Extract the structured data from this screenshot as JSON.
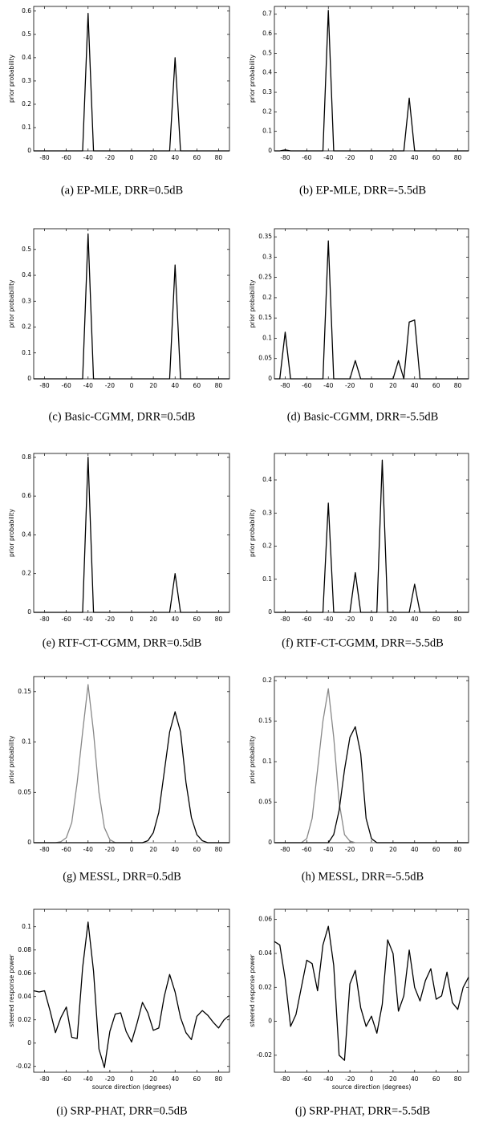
{
  "chart_data": [
    {
      "type": "line",
      "title": "(a) EP-MLE, DRR=0.5dB",
      "y_label": "prior probability",
      "x": [
        -90,
        -85,
        -80,
        -75,
        -70,
        -65,
        -60,
        -55,
        -50,
        -45,
        -40,
        -35,
        -30,
        -25,
        -20,
        -15,
        -10,
        -5,
        0,
        5,
        10,
        15,
        20,
        25,
        30,
        35,
        40,
        45,
        50,
        55,
        60,
        65,
        70,
        75,
        80,
        85,
        90
      ],
      "series": [
        {
          "color": "#000000",
          "values": [
            0,
            0,
            0,
            0,
            0,
            0,
            0,
            0,
            0,
            0,
            0.59,
            0,
            0,
            0,
            0,
            0,
            0,
            0,
            0,
            0,
            0,
            0,
            0,
            0,
            0,
            0,
            0.4,
            0,
            0,
            0,
            0,
            0,
            0,
            0,
            0,
            0,
            0
          ]
        }
      ],
      "xlim": [
        -90,
        90
      ],
      "xticks": [
        -80,
        -60,
        -40,
        -20,
        0,
        20,
        40,
        60,
        80
      ],
      "ylim": [
        0,
        0.62
      ],
      "yticks": [
        0,
        0.1,
        0.2,
        0.3,
        0.4,
        0.5,
        0.6
      ]
    },
    {
      "type": "line",
      "title": "(b) EP-MLE, DRR=-5.5dB",
      "y_label": "prior probability",
      "x": [
        -90,
        -85,
        -80,
        -75,
        -70,
        -65,
        -60,
        -55,
        -50,
        -45,
        -40,
        -35,
        -30,
        -25,
        -20,
        -15,
        -10,
        -5,
        0,
        5,
        10,
        15,
        20,
        25,
        30,
        35,
        40,
        45,
        50,
        55,
        60,
        65,
        70,
        75,
        80,
        85,
        90
      ],
      "series": [
        {
          "color": "#000000",
          "values": [
            0,
            0,
            0.005,
            0,
            0,
            0,
            0,
            0,
            0,
            0,
            0.72,
            0,
            0,
            0,
            0,
            0,
            0,
            0,
            0,
            0,
            0,
            0,
            0,
            0,
            0,
            0.27,
            0,
            0,
            0,
            0,
            0,
            0,
            0,
            0,
            0,
            0,
            0
          ]
        }
      ],
      "xlim": [
        -90,
        90
      ],
      "xticks": [
        -80,
        -60,
        -40,
        -20,
        0,
        20,
        40,
        60,
        80
      ],
      "ylim": [
        0,
        0.74
      ],
      "yticks": [
        0,
        0.1,
        0.2,
        0.3,
        0.4,
        0.5,
        0.6,
        0.7
      ]
    },
    {
      "type": "line",
      "title": "(c) Basic-CGMM, DRR=0.5dB",
      "y_label": "prior probability",
      "x": [
        -90,
        -85,
        -80,
        -75,
        -70,
        -65,
        -60,
        -55,
        -50,
        -45,
        -40,
        -35,
        -30,
        -25,
        -20,
        -15,
        -10,
        -5,
        0,
        5,
        10,
        15,
        20,
        25,
        30,
        35,
        40,
        45,
        50,
        55,
        60,
        65,
        70,
        75,
        80,
        85,
        90
      ],
      "series": [
        {
          "color": "#000000",
          "values": [
            0,
            0,
            0,
            0,
            0,
            0,
            0,
            0,
            0,
            0,
            0.56,
            0,
            0,
            0,
            0,
            0,
            0,
            0,
            0,
            0,
            0,
            0,
            0,
            0,
            0,
            0,
            0.44,
            0,
            0,
            0,
            0,
            0,
            0,
            0,
            0,
            0,
            0
          ]
        }
      ],
      "xlim": [
        -90,
        90
      ],
      "xticks": [
        -80,
        -60,
        -40,
        -20,
        0,
        20,
        40,
        60,
        80
      ],
      "ylim": [
        0,
        0.58
      ],
      "yticks": [
        0,
        0.1,
        0.2,
        0.3,
        0.4,
        0.5
      ]
    },
    {
      "type": "line",
      "title": "(d) Basic-CGMM, DRR=-5.5dB",
      "y_label": "prior probability",
      "x": [
        -90,
        -85,
        -80,
        -75,
        -70,
        -65,
        -60,
        -55,
        -50,
        -45,
        -40,
        -35,
        -30,
        -25,
        -20,
        -15,
        -10,
        -5,
        0,
        5,
        10,
        15,
        20,
        25,
        30,
        35,
        40,
        45,
        50,
        55,
        60,
        65,
        70,
        75,
        80,
        85,
        90
      ],
      "series": [
        {
          "color": "#000000",
          "values": [
            0,
            0,
            0.115,
            0,
            0,
            0,
            0,
            0,
            0,
            0,
            0.34,
            0,
            0,
            0,
            0,
            0.045,
            0,
            0,
            0,
            0,
            0,
            0,
            0,
            0.045,
            0,
            0.14,
            0.145,
            0,
            0,
            0,
            0,
            0,
            0,
            0,
            0,
            0,
            0
          ]
        }
      ],
      "xlim": [
        -90,
        90
      ],
      "xticks": [
        -80,
        -60,
        -40,
        -20,
        0,
        20,
        40,
        60,
        80
      ],
      "ylim": [
        0,
        0.37
      ],
      "yticks": [
        0,
        0.05,
        0.1,
        0.15,
        0.2,
        0.25,
        0.3,
        0.35
      ]
    },
    {
      "type": "line",
      "title": "(e) RTF-CT-CGMM, DRR=0.5dB",
      "y_label": "prior probability",
      "x": [
        -90,
        -85,
        -80,
        -75,
        -70,
        -65,
        -60,
        -55,
        -50,
        -45,
        -40,
        -35,
        -30,
        -25,
        -20,
        -15,
        -10,
        -5,
        0,
        5,
        10,
        15,
        20,
        25,
        30,
        35,
        40,
        45,
        50,
        55,
        60,
        65,
        70,
        75,
        80,
        85,
        90
      ],
      "series": [
        {
          "color": "#000000",
          "values": [
            0,
            0,
            0,
            0,
            0,
            0,
            0,
            0,
            0,
            0,
            0.8,
            0,
            0,
            0,
            0,
            0,
            0,
            0,
            0,
            0,
            0,
            0,
            0,
            0,
            0,
            0,
            0.2,
            0,
            0,
            0,
            0,
            0,
            0,
            0,
            0,
            0,
            0
          ]
        }
      ],
      "xlim": [
        -90,
        90
      ],
      "xticks": [
        -80,
        -60,
        -40,
        -20,
        0,
        20,
        40,
        60,
        80
      ],
      "ylim": [
        0,
        0.82
      ],
      "yticks": [
        0,
        0.2,
        0.4,
        0.6,
        0.8
      ]
    },
    {
      "type": "line",
      "title": "(f) RTF-CT-CGMM, DRR=-5.5dB",
      "y_label": "prior probability",
      "x": [
        -90,
        -85,
        -80,
        -75,
        -70,
        -65,
        -60,
        -55,
        -50,
        -45,
        -40,
        -35,
        -30,
        -25,
        -20,
        -15,
        -10,
        -5,
        0,
        5,
        10,
        15,
        20,
        25,
        30,
        35,
        40,
        45,
        50,
        55,
        60,
        65,
        70,
        75,
        80,
        85,
        90
      ],
      "series": [
        {
          "color": "#000000",
          "values": [
            0,
            0,
            0,
            0,
            0,
            0,
            0,
            0,
            0,
            0,
            0.33,
            0,
            0,
            0,
            0,
            0.12,
            0,
            0,
            0,
            0,
            0.46,
            0,
            0,
            0,
            0,
            0,
            0.085,
            0,
            0,
            0,
            0,
            0,
            0,
            0,
            0,
            0,
            0
          ]
        }
      ],
      "xlim": [
        -90,
        90
      ],
      "xticks": [
        -80,
        -60,
        -40,
        -20,
        0,
        20,
        40,
        60,
        80
      ],
      "ylim": [
        0,
        0.48
      ],
      "yticks": [
        0,
        0.1,
        0.2,
        0.3,
        0.4
      ]
    },
    {
      "type": "line",
      "title": "(g) MESSL, DRR=0.5dB",
      "y_label": "prior probability",
      "x": [
        -90,
        -85,
        -80,
        -75,
        -70,
        -65,
        -60,
        -55,
        -50,
        -45,
        -40,
        -35,
        -30,
        -25,
        -20,
        -15,
        -10,
        -5,
        0,
        5,
        10,
        15,
        20,
        25,
        30,
        35,
        40,
        45,
        50,
        55,
        60,
        65,
        70,
        75,
        80,
        85,
        90
      ],
      "series": [
        {
          "color": "#888888",
          "values": [
            0,
            0,
            0,
            0,
            0,
            0.001,
            0.005,
            0.02,
            0.06,
            0.11,
            0.157,
            0.11,
            0.05,
            0.015,
            0.003,
            0,
            0,
            0,
            0,
            0,
            0,
            0,
            0,
            0,
            0,
            0,
            0,
            0,
            0,
            0,
            0,
            0,
            0,
            0,
            0,
            0,
            0
          ]
        },
        {
          "color": "#000000",
          "values": [
            0,
            0,
            0,
            0,
            0,
            0,
            0,
            0,
            0,
            0,
            0,
            0,
            0,
            0,
            0,
            0,
            0,
            0,
            0,
            0,
            0,
            0.002,
            0.01,
            0.03,
            0.07,
            0.11,
            0.13,
            0.11,
            0.06,
            0.025,
            0.008,
            0.002,
            0,
            0,
            0,
            0,
            0
          ]
        }
      ],
      "xlim": [
        -90,
        90
      ],
      "xticks": [
        -80,
        -60,
        -40,
        -20,
        0,
        20,
        40,
        60,
        80
      ],
      "ylim": [
        0,
        0.165
      ],
      "yticks": [
        0,
        0.05,
        0.1,
        0.15
      ]
    },
    {
      "type": "line",
      "title": "(h) MESSL, DRR=-5.5dB",
      "y_label": "prior probability",
      "x": [
        -90,
        -85,
        -80,
        -75,
        -70,
        -65,
        -60,
        -55,
        -50,
        -45,
        -40,
        -35,
        -30,
        -25,
        -20,
        -15,
        -10,
        -5,
        0,
        5,
        10,
        15,
        20,
        25,
        30,
        35,
        40,
        45,
        50,
        55,
        60,
        65,
        70,
        75,
        80,
        85,
        90
      ],
      "series": [
        {
          "color": "#888888",
          "values": [
            0,
            0,
            0,
            0,
            0,
            0,
            0.005,
            0.03,
            0.09,
            0.15,
            0.19,
            0.13,
            0.05,
            0.01,
            0.002,
            0,
            0,
            0,
            0,
            0,
            0,
            0,
            0,
            0,
            0,
            0,
            0,
            0,
            0,
            0,
            0,
            0,
            0,
            0,
            0,
            0,
            0
          ]
        },
        {
          "color": "#000000",
          "values": [
            0,
            0,
            0,
            0,
            0,
            0,
            0,
            0,
            0,
            0,
            0,
            0.01,
            0.04,
            0.09,
            0.13,
            0.143,
            0.11,
            0.03,
            0.005,
            0,
            0,
            0,
            0,
            0,
            0,
            0,
            0,
            0,
            0,
            0,
            0,
            0,
            0,
            0,
            0,
            0,
            0
          ]
        }
      ],
      "xlim": [
        -90,
        90
      ],
      "xticks": [
        -80,
        -60,
        -40,
        -20,
        0,
        20,
        40,
        60,
        80
      ],
      "ylim": [
        0,
        0.205
      ],
      "yticks": [
        0,
        0.05,
        0.1,
        0.15,
        0.2
      ]
    },
    {
      "type": "line",
      "title": "(i) SRP-PHAT, DRR=0.5dB",
      "y_label": "steered response power",
      "x_label": "source direction (degrees)",
      "x": [
        -90,
        -85,
        -80,
        -75,
        -70,
        -65,
        -60,
        -55,
        -50,
        -45,
        -40,
        -35,
        -30,
        -25,
        -20,
        -15,
        -10,
        -5,
        0,
        5,
        10,
        15,
        20,
        25,
        30,
        35,
        40,
        45,
        50,
        55,
        60,
        65,
        70,
        75,
        80,
        85,
        90
      ],
      "series": [
        {
          "color": "#000000",
          "values": [
            0.045,
            0.044,
            0.045,
            0.028,
            0.009,
            0.022,
            0.031,
            0.005,
            0.004,
            0.065,
            0.104,
            0.062,
            -0.005,
            -0.021,
            0.01,
            0.025,
            0.026,
            0.01,
            0.001,
            0.017,
            0.035,
            0.026,
            0.011,
            0.013,
            0.04,
            0.059,
            0.044,
            0.022,
            0.009,
            0.003,
            0.023,
            0.028,
            0.024,
            0.018,
            0.013,
            0.02,
            0.024
          ]
        }
      ],
      "xlim": [
        -90,
        90
      ],
      "xticks": [
        -80,
        -60,
        -40,
        -20,
        0,
        20,
        40,
        60,
        80
      ],
      "ylim": [
        -0.025,
        0.115
      ],
      "yticks": [
        -0.02,
        0,
        0.02,
        0.04,
        0.06,
        0.08,
        0.1
      ]
    },
    {
      "type": "line",
      "title": "(j) SRP-PHAT, DRR=-5.5dB",
      "y_label": "steered response power",
      "x_label": "source direction (degrees)",
      "x": [
        -90,
        -85,
        -80,
        -75,
        -70,
        -65,
        -60,
        -55,
        -50,
        -45,
        -40,
        -35,
        -30,
        -25,
        -20,
        -15,
        -10,
        -5,
        0,
        5,
        10,
        15,
        20,
        25,
        30,
        35,
        40,
        45,
        50,
        55,
        60,
        65,
        70,
        75,
        80,
        85,
        90
      ],
      "series": [
        {
          "color": "#000000",
          "values": [
            0.047,
            0.045,
            0.025,
            -0.003,
            0.004,
            0.02,
            0.036,
            0.034,
            0.018,
            0.045,
            0.056,
            0.033,
            -0.02,
            -0.023,
            0.022,
            0.03,
            0.008,
            -0.003,
            0.003,
            -0.007,
            0.01,
            0.048,
            0.04,
            0.006,
            0.015,
            0.042,
            0.02,
            0.012,
            0.024,
            0.031,
            0.013,
            0.015,
            0.029,
            0.011,
            0.007,
            0.02,
            0.026
          ]
        }
      ],
      "xlim": [
        -90,
        90
      ],
      "xticks": [
        -80,
        -60,
        -40,
        -20,
        0,
        20,
        40,
        60,
        80
      ],
      "ylim": [
        -0.03,
        0.066
      ],
      "yticks": [
        -0.02,
        0,
        0.02,
        0.04,
        0.06
      ]
    }
  ]
}
